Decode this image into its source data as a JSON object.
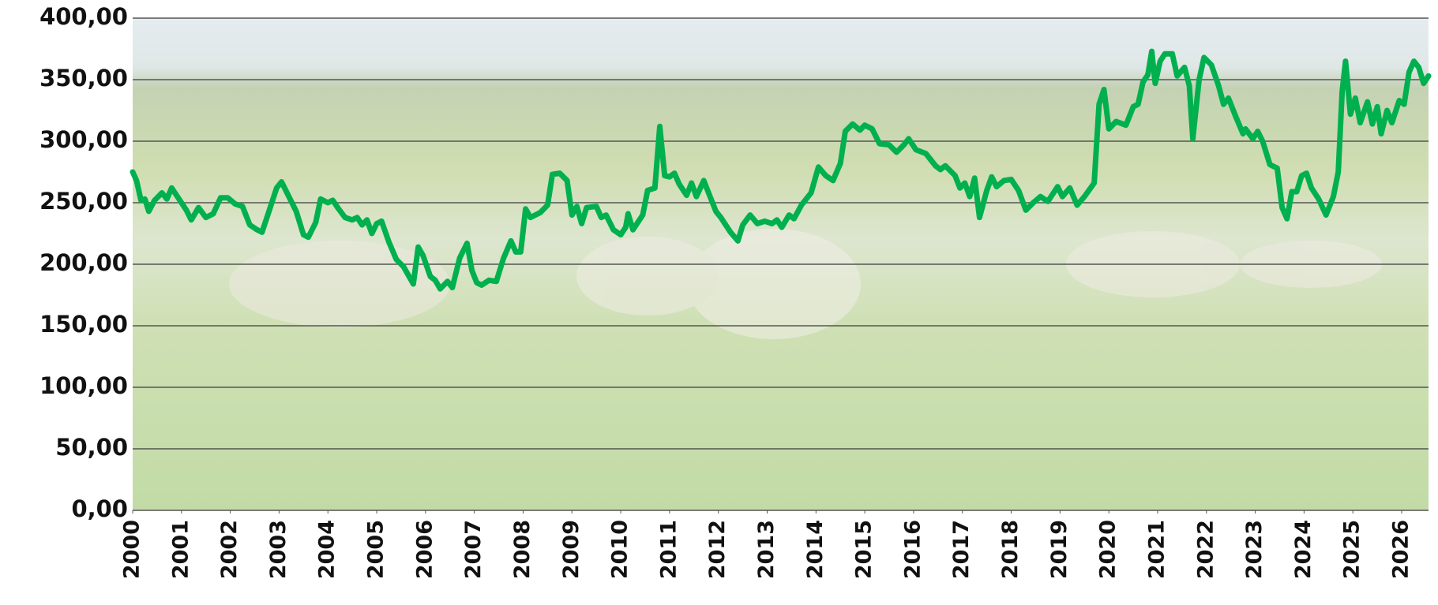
{
  "chart_data": {
    "type": "line",
    "x": [
      2000.0,
      2000.08,
      2000.17,
      2000.25,
      2000.33,
      2000.45,
      2000.6,
      2000.7,
      2000.8,
      2000.95,
      2001.1,
      2001.2,
      2001.35,
      2001.5,
      2001.65,
      2001.8,
      2001.95,
      2002.1,
      2002.25,
      2002.4,
      2002.55,
      2002.65,
      2002.8,
      2002.95,
      2003.05,
      2003.2,
      2003.35,
      2003.5,
      2003.6,
      2003.75,
      2003.85,
      2004.0,
      2004.1,
      2004.2,
      2004.35,
      2004.5,
      2004.6,
      2004.7,
      2004.8,
      2004.9,
      2005.0,
      2005.1,
      2005.25,
      2005.4,
      2005.55,
      2005.65,
      2005.75,
      2005.85,
      2005.95,
      2006.1,
      2006.2,
      2006.3,
      2006.45,
      2006.55,
      2006.7,
      2006.85,
      2006.95,
      2007.05,
      2007.15,
      2007.3,
      2007.45,
      2007.6,
      2007.75,
      2007.85,
      2007.95,
      2008.05,
      2008.15,
      2008.35,
      2008.5,
      2008.6,
      2008.75,
      2008.9,
      2009.0,
      2009.1,
      2009.2,
      2009.3,
      2009.5,
      2009.6,
      2009.7,
      2009.85,
      2010.0,
      2010.1,
      2010.15,
      2010.25,
      2010.45,
      2010.55,
      2010.7,
      2010.8,
      2010.9,
      2011.0,
      2011.1,
      2011.2,
      2011.35,
      2011.45,
      2011.55,
      2011.7,
      2011.8,
      2011.95,
      2012.05,
      2012.25,
      2012.4,
      2012.5,
      2012.65,
      2012.8,
      2012.95,
      2013.1,
      2013.2,
      2013.3,
      2013.45,
      2013.55,
      2013.7,
      2013.9,
      2014.05,
      2014.2,
      2014.35,
      2014.5,
      2014.6,
      2014.75,
      2014.9,
      2015.0,
      2015.15,
      2015.3,
      2015.5,
      2015.65,
      2015.8,
      2015.9,
      2016.05,
      2016.25,
      2016.45,
      2016.55,
      2016.65,
      2016.85,
      2016.95,
      2017.05,
      2017.15,
      2017.25,
      2017.35,
      2017.5,
      2017.6,
      2017.7,
      2017.85,
      2018.0,
      2018.15,
      2018.3,
      2018.45,
      2018.6,
      2018.75,
      2018.95,
      2019.05,
      2019.2,
      2019.35,
      2019.5,
      2019.7,
      2019.8,
      2019.9,
      2020.0,
      2020.15,
      2020.35,
      2020.5,
      2020.6,
      2020.7,
      2020.8,
      2020.88,
      2020.95,
      2021.05,
      2021.15,
      2021.3,
      2021.4,
      2021.55,
      2021.65,
      2021.72,
      2021.85,
      2021.95,
      2022.1,
      2022.25,
      2022.35,
      2022.45,
      2022.6,
      2022.75,
      2022.8,
      2022.95,
      2023.05,
      2023.15,
      2023.3,
      2023.45,
      2023.55,
      2023.65,
      2023.75,
      2023.85,
      2023.95,
      2024.05,
      2024.15,
      2024.3,
      2024.45,
      2024.6,
      2024.7,
      2024.78,
      2024.85,
      2024.95,
      2025.05,
      2025.15,
      2025.3,
      2025.4,
      2025.5,
      2025.58,
      2025.7,
      2025.8,
      2025.95,
      2026.05,
      2026.15,
      2026.25,
      2026.35,
      2026.45,
      2026.55
    ],
    "values": [
      275,
      268,
      252,
      253,
      243,
      252,
      258,
      253,
      262,
      253,
      244,
      236,
      246,
      238,
      241,
      254,
      254,
      249,
      247,
      232,
      228,
      226,
      244,
      262,
      267,
      255,
      243,
      224,
      222,
      234,
      253,
      250,
      252,
      246,
      238,
      236,
      238,
      232,
      236,
      225,
      233,
      235,
      218,
      204,
      198,
      191,
      184,
      214,
      207,
      190,
      187,
      180,
      186,
      181,
      205,
      217,
      195,
      185,
      183,
      187,
      186,
      205,
      219,
      210,
      210,
      245,
      238,
      242,
      248,
      273,
      274,
      268,
      240,
      247,
      233,
      246,
      247,
      238,
      240,
      228,
      224,
      230,
      241,
      228,
      240,
      260,
      262,
      312,
      272,
      271,
      274,
      265,
      256,
      266,
      255,
      268,
      258,
      243,
      238,
      226,
      219,
      232,
      240,
      233,
      235,
      233,
      236,
      230,
      240,
      237,
      248,
      258,
      279,
      272,
      268,
      282,
      308,
      314,
      309,
      313,
      310,
      298,
      297,
      291,
      297,
      302,
      293,
      290,
      280,
      277,
      280,
      272,
      262,
      266,
      255,
      270,
      238,
      260,
      271,
      263,
      268,
      269,
      260,
      244,
      250,
      255,
      251,
      263,
      255,
      262,
      248,
      255,
      266,
      330,
      342,
      310,
      316,
      313,
      328,
      330,
      348,
      354,
      373,
      347,
      365,
      371,
      371,
      353,
      360,
      345,
      302,
      350,
      368,
      362,
      345,
      330,
      335,
      320,
      306,
      310,
      302,
      308,
      300,
      281,
      278,
      246,
      237,
      259,
      259,
      272,
      274,
      262,
      253,
      240,
      255,
      275,
      340,
      365,
      322,
      335,
      315,
      332,
      314,
      328,
      306,
      325,
      315,
      333,
      330,
      356,
      365,
      360,
      347,
      353
    ],
    "color": "#00b04f",
    "xlim": [
      2000,
      2026.55
    ],
    "xticks": [
      2000,
      2001,
      2002,
      2003,
      2004,
      2005,
      2006,
      2007,
      2008,
      2009,
      2010,
      2011,
      2012,
      2013,
      2014,
      2015,
      2016,
      2017,
      2018,
      2019,
      2020,
      2021,
      2022,
      2023,
      2024,
      2025,
      2026
    ],
    "ylim": [
      0,
      400
    ],
    "yticks": [
      {
        "value": 0,
        "label": "0,00"
      },
      {
        "value": 50,
        "label": "50,00"
      },
      {
        "value": 100,
        "label": "100,00"
      },
      {
        "value": 150,
        "label": "150,00"
      },
      {
        "value": 200,
        "label": "200,00"
      },
      {
        "value": 250,
        "label": "250,00"
      },
      {
        "value": 300,
        "label": "300,00"
      },
      {
        "value": 350,
        "label": "350,00"
      },
      {
        "value": 400,
        "label": "400,00"
      }
    ],
    "grid": true
  }
}
